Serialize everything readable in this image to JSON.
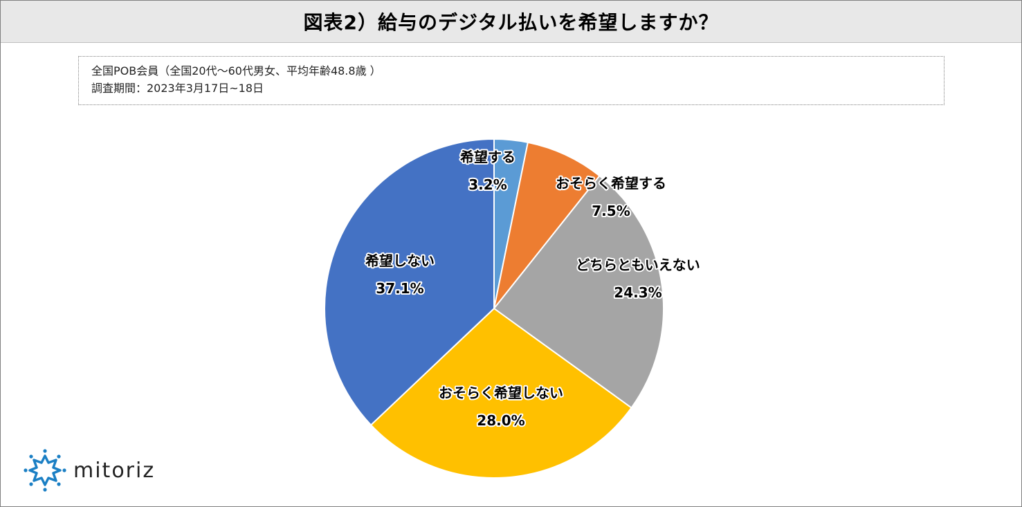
{
  "title": "図表2）給与のデジタル払いを希望しますか？",
  "info": {
    "line1": "全国POB会員（全国20代〜60代男女、平均年齢48.8歳 ）",
    "line2": "調査期間：2023年3月17日~18日"
  },
  "logo": {
    "text": "mitoriz",
    "icon": "sun-burst-logo-icon",
    "color": "#1b7fc4"
  },
  "chart_data": {
    "type": "pie",
    "title": "図表2）給与のデジタル払いを希望しますか？",
    "start": "12 o'clock, clockwise",
    "slices": [
      {
        "label": "希望する",
        "value": 3.2,
        "value_label": "3.2%",
        "color": "#5b9bd5"
      },
      {
        "label": "おそらく希望する",
        "value": 7.5,
        "value_label": "7.5%",
        "color": "#ed7d31"
      },
      {
        "label": "どちらともいえない",
        "value": 24.3,
        "value_label": "24.3%",
        "color": "#a5a5a5"
      },
      {
        "label": "おそらく希望しない",
        "value": 28.0,
        "value_label": "28.0%",
        "color": "#ffc000"
      },
      {
        "label": "希望しない",
        "value": 37.1,
        "value_label": "37.1%",
        "color": "#4472c4"
      }
    ]
  }
}
